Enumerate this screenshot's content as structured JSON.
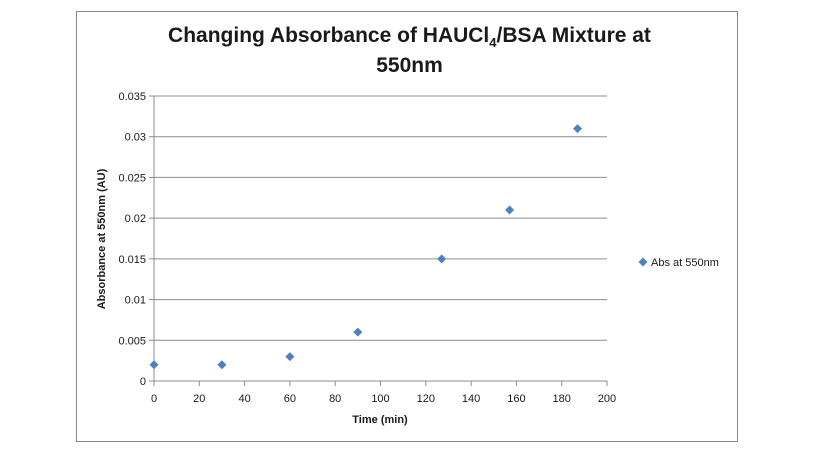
{
  "chart_data": {
    "type": "scatter",
    "title": {
      "line1_before_sub": "Changing Absorbance of HAUCl",
      "subscript": "4",
      "line1_after_sub": "/BSA Mixture at",
      "line2": "550nm"
    },
    "xlabel": "Time (min)",
    "ylabel": "Absorbance at 550nm (AU)",
    "xlim": [
      0,
      200
    ],
    "ylim": [
      0,
      0.035
    ],
    "x_ticks": [
      "0",
      "20",
      "40",
      "60",
      "80",
      "100",
      "120",
      "140",
      "160",
      "180",
      "200"
    ],
    "y_ticks": [
      "0",
      "0.005",
      "0.01",
      "0.015",
      "0.02",
      "0.025",
      "0.03",
      "0.035"
    ],
    "grid": "horizontal",
    "legend_position": "right",
    "series": [
      {
        "name": "Abs at 550nm",
        "color": "#4f81bd",
        "marker": "diamond",
        "x": [
          0,
          30,
          60,
          90,
          127,
          157,
          187
        ],
        "y": [
          0.002,
          0.002,
          0.003,
          0.006,
          0.015,
          0.021,
          0.031
        ]
      }
    ]
  }
}
